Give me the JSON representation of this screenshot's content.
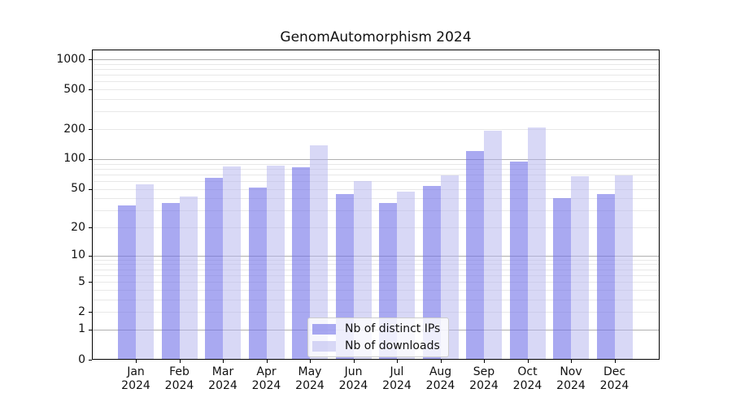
{
  "chart_data": {
    "type": "bar",
    "title": "GenomAutomorphism 2024",
    "categories": [
      "Jan",
      "Feb",
      "Mar",
      "Apr",
      "May",
      "Jun",
      "Jul",
      "Aug",
      "Sep",
      "Oct",
      "Nov",
      "Dec"
    ],
    "year_label": "2024",
    "series": [
      {
        "name": "Nb of distinct IPs",
        "color": "rgba(112,112,232,0.6)",
        "values": [
          34,
          36,
          65,
          51,
          82,
          44,
          36,
          53,
          120,
          94,
          40,
          44
        ]
      },
      {
        "name": "Nb of downloads",
        "color": "rgba(177,177,237,0.5)",
        "values": [
          56,
          42,
          85,
          86,
          137,
          60,
          47,
          69,
          193,
          206,
          67,
          68
        ]
      }
    ],
    "xlabel": "",
    "ylabel": "",
    "y_scale": "log1p",
    "y_ticks": [
      0,
      1,
      2,
      5,
      10,
      20,
      50,
      100,
      200,
      500,
      1000
    ],
    "ylim": [
      0,
      1250
    ],
    "grid": {
      "orientation": "horizontal",
      "major_color": "#b0b0b0",
      "minor_color": "#e8e8e8"
    },
    "legend_position": "lower-center-inside",
    "axis_color": "#000000",
    "background_color": "#ffffff"
  }
}
